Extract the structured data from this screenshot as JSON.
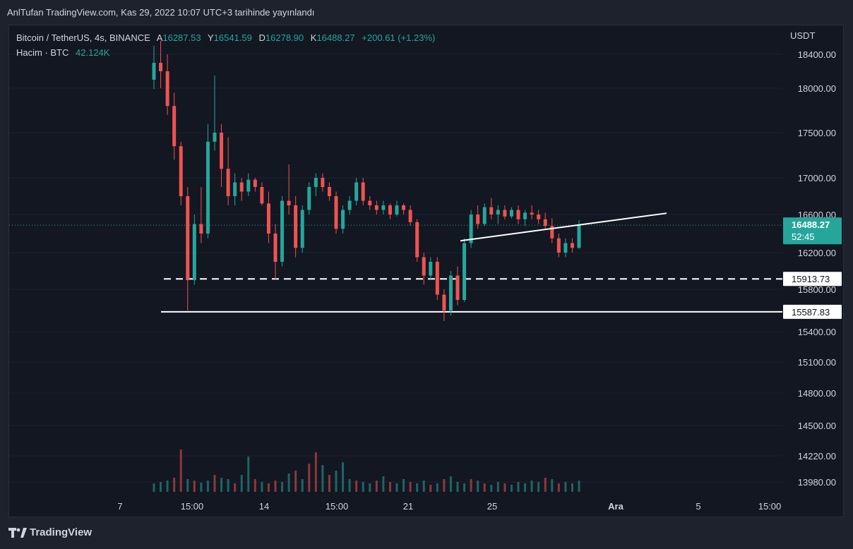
{
  "header": {
    "published": "AnlTufan TradingView.com, Kas 29, 2022 10:07 UTC+3 tarihinde yayınlandı"
  },
  "legend": {
    "symbol": "Bitcoin / TetherUS, 4s, BINANCE",
    "open_label": "A",
    "open": "16287.53",
    "high_label": "Y",
    "high": "16541.59",
    "low_label": "D",
    "low": "16278.90",
    "close_label": "K",
    "close": "16488.27",
    "change": "+200.61 (+1.23%)",
    "volume_label": "Hacim · BTC",
    "volume": "42.124K"
  },
  "price_axis": {
    "currency": "USDT"
  },
  "last_price": {
    "price": "16488.27",
    "countdown": "52:45"
  },
  "level_labels": {
    "resistance": "15913.73",
    "support": "15587.83"
  },
  "footer": {
    "brand": "TradingView"
  },
  "colors": {
    "up": "#26a69a",
    "down": "#ef5350",
    "background": "#131722",
    "grid": "#1e222d",
    "text": "#d1d4dc",
    "line": "#ffffff"
  },
  "chart_data": {
    "type": "candlestick",
    "title": "Bitcoin / TetherUS, 4s, BINANCE",
    "y_ticks": [
      18400,
      18000,
      17500,
      17000,
      16600,
      16200,
      15800,
      15400,
      15100,
      14800,
      14500,
      14220,
      13980
    ],
    "y_tick_labels": [
      "18400.00",
      "18000.00",
      "17500.00",
      "17000.00",
      "16600.00",
      "16200.00",
      "15800.00",
      "15400.00",
      "15100.00",
      "14800.00",
      "14500.00",
      "14220.00",
      "13980.00"
    ],
    "x_tick_labels": [
      "7",
      "15:00",
      "14",
      "15:00",
      "21",
      "25",
      "Ara",
      "5",
      "15:00"
    ],
    "last_price": 16488.27,
    "horizontal_levels": [
      {
        "price": 15913.73,
        "style": "dashed"
      },
      {
        "price": 15587.83,
        "style": "solid"
      }
    ],
    "trendline": [
      [
        16324,
        16614
      ]
    ],
    "candles": [
      [
        18100,
        18500,
        17990,
        18300
      ],
      [
        18300,
        18560,
        18000,
        18200
      ],
      [
        18200,
        18400,
        17700,
        17800
      ],
      [
        17800,
        17950,
        17200,
        17350
      ],
      [
        17350,
        17400,
        16700,
        16800
      ],
      [
        16800,
        16900,
        15600,
        15900
      ],
      [
        15900,
        16600,
        15850,
        16500
      ],
      [
        16500,
        16900,
        16300,
        16400
      ],
      [
        16400,
        17600,
        16350,
        17400
      ],
      [
        17400,
        18150,
        17300,
        17500
      ],
      [
        17500,
        17600,
        16900,
        17100
      ],
      [
        17100,
        17450,
        16700,
        16800
      ],
      [
        16800,
        17050,
        16700,
        16950
      ],
      [
        16950,
        17000,
        16750,
        16850
      ],
      [
        16850,
        17050,
        16800,
        16980
      ],
      [
        16980,
        17000,
        16850,
        16900
      ],
      [
        16900,
        16950,
        16700,
        16720
      ],
      [
        16720,
        16850,
        16300,
        16400
      ],
      [
        16400,
        16500,
        15900,
        16100
      ],
      [
        16100,
        16800,
        16050,
        16750
      ],
      [
        16750,
        17150,
        16600,
        16700
      ],
      [
        16700,
        16800,
        16150,
        16250
      ],
      [
        16250,
        16700,
        16200,
        16650
      ],
      [
        16650,
        16950,
        16600,
        16900
      ],
      [
        16900,
        17050,
        16800,
        17000
      ],
      [
        17000,
        17050,
        16850,
        16900
      ],
      [
        16900,
        16950,
        16750,
        16800
      ],
      [
        16800,
        16850,
        16400,
        16450
      ],
      [
        16450,
        16700,
        16400,
        16650
      ],
      [
        16650,
        16800,
        16600,
        16750
      ],
      [
        16750,
        17000,
        16700,
        16950
      ],
      [
        16950,
        17000,
        16700,
        16750
      ],
      [
        16750,
        16800,
        16650,
        16700
      ],
      [
        16700,
        16750,
        16600,
        16650
      ],
      [
        16650,
        16750,
        16600,
        16700
      ],
      [
        16700,
        16720,
        16550,
        16600
      ],
      [
        16600,
        16750,
        16580,
        16700
      ],
      [
        16700,
        16720,
        16600,
        16650
      ],
      [
        16650,
        16700,
        16480,
        16520
      ],
      [
        16520,
        16550,
        16100,
        16150
      ],
      [
        16150,
        16200,
        15850,
        15950
      ],
      [
        15950,
        16150,
        15900,
        16100
      ],
      [
        16100,
        16150,
        15700,
        15750
      ],
      [
        15750,
        15800,
        15500,
        15600
      ],
      [
        15600,
        16000,
        15550,
        15950
      ],
      [
        15950,
        16050,
        15650,
        15700
      ],
      [
        15700,
        16350,
        15680,
        16300
      ],
      [
        16300,
        16650,
        16250,
        16600
      ],
      [
        16600,
        16700,
        16450,
        16500
      ],
      [
        16500,
        16720,
        16480,
        16680
      ],
      [
        16680,
        16780,
        16550,
        16600
      ],
      [
        16600,
        16700,
        16500,
        16650
      ],
      [
        16650,
        16700,
        16550,
        16580
      ],
      [
        16580,
        16680,
        16560,
        16650
      ],
      [
        16650,
        16700,
        16500,
        16550
      ],
      [
        16550,
        16650,
        16480,
        16620
      ],
      [
        16620,
        16700,
        16550,
        16600
      ],
      [
        16600,
        16650,
        16500,
        16550
      ],
      [
        16550,
        16620,
        16450,
        16480
      ],
      [
        16480,
        16560,
        16300,
        16350
      ],
      [
        16350,
        16400,
        16150,
        16200
      ],
      [
        16200,
        16350,
        16150,
        16300
      ],
      [
        16300,
        16350,
        16200,
        16250
      ],
      [
        16250,
        16540,
        16240,
        16490
      ]
    ],
    "volume": [
      [
        12,
        1
      ],
      [
        14,
        1
      ],
      [
        16,
        1
      ],
      [
        20,
        0
      ],
      [
        60,
        0
      ],
      [
        18,
        1
      ],
      [
        16,
        0
      ],
      [
        13,
        1
      ],
      [
        16,
        1
      ],
      [
        24,
        0
      ],
      [
        20,
        1
      ],
      [
        18,
        1
      ],
      [
        12,
        0
      ],
      [
        24,
        1
      ],
      [
        50,
        1
      ],
      [
        18,
        0
      ],
      [
        14,
        1
      ],
      [
        12,
        0
      ],
      [
        16,
        0
      ],
      [
        14,
        1
      ],
      [
        26,
        1
      ],
      [
        30,
        0
      ],
      [
        18,
        1
      ],
      [
        40,
        0
      ],
      [
        56,
        0
      ],
      [
        38,
        1
      ],
      [
        24,
        0
      ],
      [
        30,
        1
      ],
      [
        42,
        1
      ],
      [
        18,
        1
      ],
      [
        16,
        0
      ],
      [
        14,
        1
      ],
      [
        12,
        1
      ],
      [
        16,
        0
      ],
      [
        22,
        1
      ],
      [
        14,
        0
      ],
      [
        12,
        1
      ],
      [
        18,
        1
      ],
      [
        14,
        0
      ],
      [
        12,
        1
      ],
      [
        16,
        1
      ],
      [
        10,
        0
      ],
      [
        12,
        1
      ],
      [
        18,
        0
      ],
      [
        22,
        1
      ],
      [
        14,
        1
      ],
      [
        12,
        1
      ],
      [
        18,
        0
      ],
      [
        16,
        1
      ],
      [
        12,
        0
      ],
      [
        10,
        1
      ],
      [
        14,
        1
      ],
      [
        12,
        0
      ],
      [
        10,
        1
      ],
      [
        14,
        1
      ],
      [
        12,
        1
      ],
      [
        16,
        1
      ],
      [
        14,
        1
      ],
      [
        20,
        0
      ],
      [
        18,
        1
      ],
      [
        12,
        0
      ],
      [
        14,
        1
      ],
      [
        12,
        1
      ],
      [
        16,
        1
      ]
    ]
  }
}
